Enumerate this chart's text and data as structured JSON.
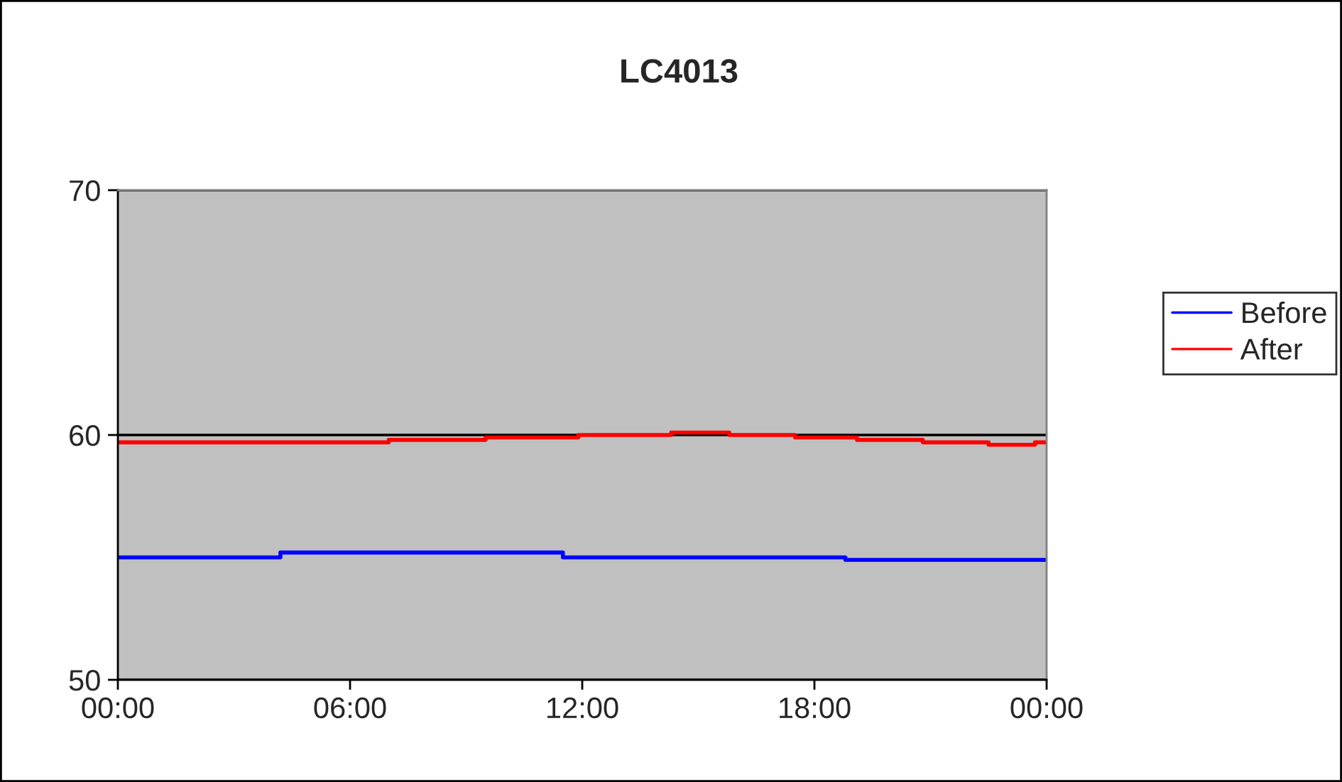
{
  "chart_data": {
    "type": "step",
    "title": "LC4013",
    "xlim": [
      0,
      24
    ],
    "xticks": [
      {
        "value": 0,
        "label": "00:00"
      },
      {
        "value": 6,
        "label": "06:00"
      },
      {
        "value": 12,
        "label": "12:00"
      },
      {
        "value": 18,
        "label": "18:00"
      },
      {
        "value": 24,
        "label": "00:00"
      }
    ],
    "ylim": [
      50,
      70
    ],
    "yticks": [
      50,
      60,
      70
    ],
    "grid": "y",
    "legend": "right",
    "series": [
      {
        "name": "Before",
        "color": "#0000ff",
        "x": [
          0,
          4.2,
          11.5,
          18.8,
          24
        ],
        "values": [
          55.0,
          55.2,
          55.0,
          54.9,
          54.9
        ]
      },
      {
        "name": "After",
        "color": "#ff0000",
        "x": [
          0,
          7.0,
          9.5,
          11.9,
          14.3,
          15.8,
          17.5,
          19.1,
          20.8,
          22.5,
          23.7,
          24
        ],
        "values": [
          59.7,
          59.8,
          59.9,
          60.0,
          60.1,
          60.0,
          59.9,
          59.8,
          59.7,
          59.6,
          59.7,
          59.7
        ]
      }
    ]
  }
}
